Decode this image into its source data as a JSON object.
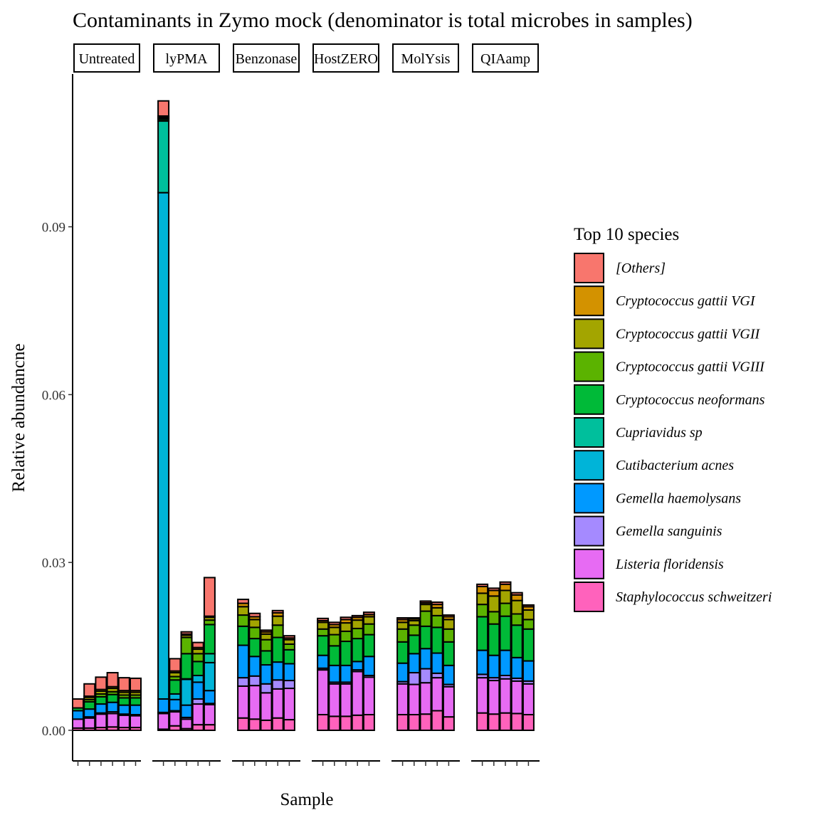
{
  "chart_data": {
    "type": "bar",
    "stacked": true,
    "title": "Contaminants in Zymo mock (denominator is total microbes in samples)",
    "xlabel": "Sample",
    "ylabel": "Relative abundancne",
    "ylim": [
      0,
      0.112
    ],
    "yticks": [
      0.0,
      0.03,
      0.06,
      0.09
    ],
    "ytick_labels": [
      "0.00",
      "0.03",
      "0.06",
      "0.09"
    ],
    "grid": false,
    "legend": {
      "title": "Top 10 species",
      "position": "right",
      "entries": [
        {
          "name": "[Others]",
          "color": "#F8766D"
        },
        {
          "name": "Cryptococcus gattii VGI",
          "color": "#D39200"
        },
        {
          "name": "Cryptococcus gattii VGII",
          "color": "#A3A500"
        },
        {
          "name": "Cryptococcus gattii VGIII",
          "color": "#5BB300"
        },
        {
          "name": "Cryptococcus neoformans",
          "color": "#00BA38"
        },
        {
          "name": "Cupriavidus sp",
          "color": "#00BF9C"
        },
        {
          "name": "Cutibacterium acnes",
          "color": "#00B4D8"
        },
        {
          "name": "Gemella haemolysans",
          "color": "#0099FF"
        },
        {
          "name": "Gemella sanguinis",
          "color": "#A58AFF"
        },
        {
          "name": "Listeria floridensis",
          "color": "#E76BF3"
        },
        {
          "name": "Staphylococcus schweitzeri",
          "color": "#FF62BC"
        }
      ]
    },
    "stack_order_bottom_to_top": [
      "Staphylococcus schweitzeri",
      "Listeria floridensis",
      "Gemella sanguinis",
      "Gemella haemolysans",
      "Cutibacterium acnes",
      "Cupriavidus sp",
      "Cryptococcus neoformans",
      "Cryptococcus gattii VGIII",
      "Cryptococcus gattii VGII",
      "Cryptococcus gattii VGI",
      "[Others]"
    ],
    "facets": [
      {
        "label": "Untreated",
        "bars": [
          {
            "Staphylococcus schweitzeri": 0.0004,
            "Listeria floridensis": 0.0016,
            "Gemella haemolysans": 0.0015,
            "Cryptococcus neoformans": 0.0005,
            "[Others]": 0.0016
          },
          {
            "Staphylococcus schweitzeri": 0.0004,
            "Listeria floridensis": 0.0018,
            "Gemella sanguinis": 0.0002,
            "Gemella haemolysans": 0.0014,
            "Cryptococcus neoformans": 0.0013,
            "Cryptococcus gattii VGIII": 0.0004,
            "Cryptococcus gattii VGII": 0.0004,
            "Cryptococcus gattii VGI": 0.0002,
            "[Others]": 0.0022
          },
          {
            "Staphylococcus schweitzeri": 0.0005,
            "Listeria floridensis": 0.0024,
            "Gemella sanguinis": 0.0002,
            "Gemella haemolysans": 0.0016,
            "Cryptococcus neoformans": 0.0013,
            "Cryptococcus gattii VGIII": 0.0005,
            "Cryptococcus gattii VGII": 0.0005,
            "Cryptococcus gattii VGI": 0.0003,
            "[Others]": 0.0022
          },
          {
            "Staphylococcus schweitzeri": 0.0006,
            "Listeria floridensis": 0.0024,
            "Gemella sanguinis": 0.0003,
            "Gemella haemolysans": 0.0017,
            "Cryptococcus neoformans": 0.0014,
            "Cryptococcus gattii VGIII": 0.0005,
            "Cryptococcus gattii VGII": 0.0006,
            "Cryptococcus gattii VGI": 0.0003,
            "[Others]": 0.0025
          },
          {
            "Staphylococcus schweitzeri": 0.0005,
            "Listeria floridensis": 0.0022,
            "Gemella sanguinis": 0.0002,
            "Gemella haemolysans": 0.0016,
            "Cryptococcus neoformans": 0.0013,
            "Cryptococcus gattii VGIII": 0.0005,
            "Cryptococcus gattii VGII": 0.0005,
            "Cryptococcus gattii VGI": 0.0003,
            "[Others]": 0.0023
          },
          {
            "Staphylococcus schweitzeri": 0.0005,
            "Listeria floridensis": 0.0021,
            "Gemella sanguinis": 0.0002,
            "Gemella haemolysans": 0.0017,
            "Cryptococcus neoformans": 0.0013,
            "Cryptococcus gattii VGIII": 0.0005,
            "Cryptococcus gattii VGII": 0.0005,
            "Cryptococcus gattii VGI": 0.0003,
            "[Others]": 0.0022
          }
        ]
      },
      {
        "label": "lyPMA",
        "bars": [
          {
            "Staphylococcus schweitzeri": 0.0002,
            "Listeria floridensis": 0.0028,
            "Gemella sanguinis": 0.0002,
            "Gemella haemolysans": 0.0024,
            "Cutibacterium acnes": 0.0905,
            "Cupriavidus sp": 0.0128,
            "Cryptococcus neoformans": 0.0003,
            "Cryptococcus gattii VGIII": 0.0002,
            "Cryptococcus gattii VGII": 0.0002,
            "Cryptococcus gattii VGI": 0.0002,
            "[Others]": 0.0027
          },
          {
            "Staphylococcus schweitzeri": 0.0008,
            "Listeria floridensis": 0.0025,
            "Gemella sanguinis": 0.0002,
            "Gemella haemolysans": 0.002,
            "Cutibacterium acnes": 0.001,
            "Cryptococcus neoformans": 0.0025,
            "Cryptococcus gattii VGIII": 0.0006,
            "Cryptococcus gattii VGII": 0.0007,
            "Cryptococcus gattii VGI": 0.0003,
            "[Others]": 0.0022
          },
          {
            "Staphylococcus schweitzeri": 0.0003,
            "Listeria floridensis": 0.0017,
            "Gemella sanguinis": 0.0003,
            "Gemella haemolysans": 0.0022,
            "Cutibacterium acnes": 0.0046,
            "Cupriavidus sp": 0.0001,
            "Cryptococcus neoformans": 0.0045,
            "Cryptococcus gattii VGIII": 0.0029,
            "Cryptococcus gattii VGII": 0.0004,
            "Cryptococcus gattii VGI": 0.0002,
            "[Others]": 0.0004
          },
          {
            "Staphylococcus schweitzeri": 0.001,
            "Listeria floridensis": 0.0037,
            "Gemella sanguinis": 0.0009,
            "Gemella haemolysans": 0.003,
            "Cutibacterium acnes": 0.0012,
            "Cryptococcus neoformans": 0.0025,
            "Cryptococcus gattii VGIII": 0.0014,
            "Cryptococcus gattii VGII": 0.0008,
            "Cryptococcus gattii VGI": 0.0003,
            "[Others]": 0.0009
          },
          {
            "Staphylococcus schweitzeri": 0.001,
            "Listeria floridensis": 0.0036,
            "Gemella sanguinis": 0.0002,
            "Gemella haemolysans": 0.0023,
            "Cutibacterium acnes": 0.005,
            "Cupriavidus sp": 0.0016,
            "Cryptococcus neoformans": 0.0052,
            "Cryptococcus gattii VGIII": 0.0008,
            "Cryptococcus gattii VGII": 0.0005,
            "Cryptococcus gattii VGI": 0.0002,
            "[Others]": 0.0069
          }
        ]
      },
      {
        "label": "Benzonase",
        "bars": [
          {
            "Staphylococcus schweitzeri": 0.0022,
            "Listeria floridensis": 0.0057,
            "Gemella sanguinis": 0.0015,
            "Gemella haemolysans": 0.0058,
            "Cryptococcus neoformans": 0.0034,
            "Cryptococcus gattii VGIII": 0.002,
            "Cryptococcus gattii VGII": 0.0015,
            "Cryptococcus gattii VGI": 0.0006,
            "[Others]": 0.0007
          },
          {
            "Staphylococcus schweitzeri": 0.002,
            "Listeria floridensis": 0.006,
            "Gemella sanguinis": 0.0017,
            "Gemella haemolysans": 0.0035,
            "Cryptococcus neoformans": 0.0032,
            "Cryptococcus gattii VGIII": 0.002,
            "Cryptococcus gattii VGII": 0.0014,
            "Cryptococcus gattii VGI": 0.0005,
            "[Others]": 0.0006
          },
          {
            "Staphylococcus schweitzeri": 0.0018,
            "Listeria floridensis": 0.0049,
            "Gemella sanguinis": 0.0016,
            "Gemella haemolysans": 0.0034,
            "Cryptococcus neoformans": 0.0025,
            "Cryptococcus gattii VGIII": 0.002,
            "Cryptococcus gattii VGII": 0.001,
            "Cryptococcus gattii VGI": 0.0004,
            "[Others]": 0.0003
          },
          {
            "Staphylococcus schweitzeri": 0.0022,
            "Listeria floridensis": 0.0052,
            "Gemella sanguinis": 0.0016,
            "Gemella haemolysans": 0.0032,
            "Cryptococcus neoformans": 0.0044,
            "Cryptococcus gattii VGIII": 0.0022,
            "Cryptococcus gattii VGII": 0.0016,
            "Cryptococcus gattii VGI": 0.0006,
            "[Others]": 0.0004
          },
          {
            "Staphylococcus schweitzeri": 0.0019,
            "Listeria floridensis": 0.0056,
            "Gemella sanguinis": 0.0014,
            "Gemella haemolysans": 0.003,
            "Cryptococcus neoformans": 0.0025,
            "Cryptococcus gattii VGIII": 0.001,
            "Cryptococcus gattii VGII": 0.0008,
            "Cryptococcus gattii VGI": 0.0003,
            "[Others]": 0.0004
          }
        ]
      },
      {
        "label": "HostZERO",
        "bars": [
          {
            "Staphylococcus schweitzeri": 0.0028,
            "Listeria floridensis": 0.008,
            "Gemella sanguinis": 0.0003,
            "Gemella haemolysans": 0.0023,
            "Cryptococcus neoformans": 0.0035,
            "Cryptococcus gattii VGIII": 0.0012,
            "Cryptococcus gattii VGII": 0.0012,
            "Cryptococcus gattii VGI": 0.0003,
            "[Others]": 0.0004
          },
          {
            "Staphylococcus schweitzeri": 0.0025,
            "Listeria floridensis": 0.0058,
            "Gemella sanguinis": 0.0003,
            "Gemella haemolysans": 0.003,
            "Cryptococcus neoformans": 0.0035,
            "Cryptococcus gattii VGIII": 0.002,
            "Cryptococcus gattii VGII": 0.0013,
            "Cryptococcus gattii VGI": 0.0005,
            "[Others]": 0.0004
          },
          {
            "Staphylococcus schweitzeri": 0.0025,
            "Listeria floridensis": 0.0058,
            "Gemella sanguinis": 0.0003,
            "Gemella haemolysans": 0.003,
            "Cryptococcus neoformans": 0.0043,
            "Cryptococcus gattii VGIII": 0.0018,
            "Cryptococcus gattii VGII": 0.0015,
            "Cryptococcus gattii VGI": 0.0006,
            "[Others]": 0.0004
          },
          {
            "Staphylococcus schweitzeri": 0.0027,
            "Listeria floridensis": 0.0078,
            "Gemella sanguinis": 0.0003,
            "Gemella haemolysans": 0.0015,
            "Cryptococcus neoformans": 0.0041,
            "Cryptococcus gattii VGIII": 0.0018,
            "Cryptococcus gattii VGII": 0.0015,
            "Cryptococcus gattii VGI": 0.0005,
            "[Others]": 0.0003
          },
          {
            "Staphylococcus schweitzeri": 0.0028,
            "Listeria floridensis": 0.0067,
            "Gemella sanguinis": 0.0003,
            "Gemella haemolysans": 0.0034,
            "Cryptococcus neoformans": 0.0039,
            "Cryptococcus gattii VGIII": 0.0019,
            "Cryptococcus gattii VGII": 0.0013,
            "Cryptococcus gattii VGI": 0.0004,
            "[Others]": 0.0004
          }
        ]
      },
      {
        "label": "MolYsis",
        "bars": [
          {
            "Staphylococcus schweitzeri": 0.0028,
            "Listeria floridensis": 0.0055,
            "Gemella sanguinis": 0.0004,
            "Gemella haemolysans": 0.0033,
            "Cryptococcus neoformans": 0.0038,
            "Cryptococcus gattii VGIII": 0.0023,
            "Cryptococcus gattii VGII": 0.0012,
            "Cryptococcus gattii VGI": 0.0005,
            "[Others]": 0.0003
          },
          {
            "Staphylococcus schweitzeri": 0.0028,
            "Listeria floridensis": 0.0054,
            "Gemella sanguinis": 0.0021,
            "Gemella haemolysans": 0.0034,
            "Cryptococcus neoformans": 0.0033,
            "Cryptococcus gattii VGIII": 0.0018,
            "Cryptococcus gattii VGII": 0.0008,
            "Cryptococcus gattii VGI": 0.0003,
            "[Others]": 0.0002
          },
          {
            "Staphylococcus schweitzeri": 0.0029,
            "Listeria floridensis": 0.0056,
            "Gemella sanguinis": 0.0025,
            "Gemella haemolysans": 0.0036,
            "Cryptococcus neoformans": 0.004,
            "Cryptococcus gattii VGIII": 0.0027,
            "Cryptococcus gattii VGII": 0.0012,
            "Cryptococcus gattii VGI": 0.0003,
            "[Others]": 0.0003
          },
          {
            "Staphylococcus schweitzeri": 0.0035,
            "Listeria floridensis": 0.0059,
            "Gemella sanguinis": 0.0008,
            "Gemella haemolysans": 0.0036,
            "Cryptococcus neoformans": 0.0046,
            "Cryptococcus gattii VGIII": 0.0021,
            "Cryptococcus gattii VGII": 0.0014,
            "Cryptococcus gattii VGI": 0.0006,
            "[Others]": 0.0004
          },
          {
            "Staphylococcus schweitzeri": 0.0024,
            "Listeria floridensis": 0.0054,
            "Gemella sanguinis": 0.0004,
            "Gemella haemolysans": 0.0034,
            "Cryptococcus neoformans": 0.0042,
            "Cryptococcus gattii VGIII": 0.0023,
            "Cryptococcus gattii VGII": 0.0017,
            "Cryptococcus gattii VGI": 0.0005,
            "[Others]": 0.0003
          }
        ]
      },
      {
        "label": "QIAamp",
        "bars": [
          {
            "Staphylococcus schweitzeri": 0.0031,
            "Listeria floridensis": 0.0063,
            "Gemella sanguinis": 0.0006,
            "Gemella haemolysans": 0.0043,
            "Cryptococcus neoformans": 0.006,
            "Cryptococcus gattii VGIII": 0.0022,
            "Cryptococcus gattii VGII": 0.002,
            "Cryptococcus gattii VGI": 0.0012,
            "[Others]": 0.0004
          },
          {
            "Staphylococcus schweitzeri": 0.0029,
            "Listeria floridensis": 0.006,
            "Gemella sanguinis": 0.0005,
            "Gemella haemolysans": 0.004,
            "Cryptococcus neoformans": 0.0056,
            "Cryptococcus gattii VGIII": 0.0022,
            "Cryptococcus gattii VGII": 0.0028,
            "Cryptococcus gattii VGI": 0.001,
            "[Others]": 0.0004
          },
          {
            "Staphylococcus schweitzeri": 0.0031,
            "Listeria floridensis": 0.0061,
            "Gemella sanguinis": 0.0006,
            "Gemella haemolysans": 0.0045,
            "Cryptococcus neoformans": 0.0061,
            "Cryptococcus gattii VGIII": 0.0023,
            "Cryptococcus gattii VGII": 0.0023,
            "Cryptococcus gattii VGI": 0.0011,
            "[Others]": 0.0004
          },
          {
            "Staphylococcus schweitzeri": 0.003,
            "Listeria floridensis": 0.0058,
            "Gemella sanguinis": 0.0005,
            "Gemella haemolysans": 0.0037,
            "Cryptococcus neoformans": 0.0058,
            "Cryptococcus gattii VGIII": 0.002,
            "Cryptococcus gattii VGII": 0.0024,
            "Cryptococcus gattii VGI": 0.001,
            "[Others]": 0.0004
          },
          {
            "Staphylococcus schweitzeri": 0.0028,
            "Listeria floridensis": 0.0055,
            "Gemella sanguinis": 0.0005,
            "Gemella haemolysans": 0.0036,
            "Cryptococcus neoformans": 0.0057,
            "Cryptococcus gattii VGIII": 0.0017,
            "Cryptococcus gattii VGII": 0.0017,
            "Cryptococcus gattii VGI": 0.0006,
            "[Others]": 0.0003
          }
        ]
      }
    ]
  }
}
